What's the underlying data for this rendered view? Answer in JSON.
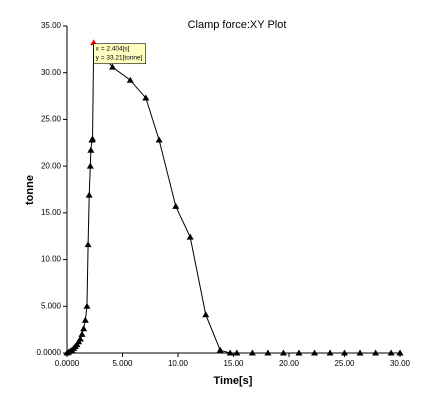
{
  "chart_data": {
    "type": "line",
    "title": "Clamp force:XY Plot",
    "xlabel": "Time[s]",
    "ylabel": "tonne",
    "annotation": [
      "x = 2.404[s]",
      "y = 33.21[tonne]"
    ],
    "x": [
      0,
      0.15,
      0.3,
      0.45,
      0.6,
      0.75,
      0.9,
      1.05,
      1.2,
      1.35,
      1.5,
      1.65,
      1.8,
      1.9,
      2.0,
      2.1,
      2.15,
      2.25,
      2.3,
      2.404,
      4.1,
      5.7,
      7.1,
      8.3,
      9.8,
      11.1,
      12.5,
      13.8,
      14.7,
      15.3,
      16.7,
      18.1,
      19.5,
      20.9,
      22.3,
      23.7,
      25.0,
      26.4,
      27.8,
      29.2,
      30.0
    ],
    "series": [
      {
        "color": "#000000",
        "highlight_color": "#ff0000",
        "values": [
          0,
          0.1,
          0.2,
          0.3,
          0.5,
          0.7,
          0.9,
          1.2,
          1.5,
          2.0,
          2.6,
          3.5,
          5.0,
          11.6,
          16.9,
          20.0,
          21.7,
          22.8,
          22.9,
          33.21,
          30.6,
          29.2,
          27.3,
          22.8,
          15.7,
          12.4,
          4.1,
          0.3,
          0,
          0,
          0,
          0,
          0,
          0,
          0,
          0,
          0,
          0,
          0,
          0,
          0
        ]
      }
    ],
    "xlim": [
      0,
      30
    ],
    "xticks": [
      {
        "value": 0,
        "label": "0.0000"
      },
      {
        "value": 5,
        "label": "5.000"
      },
      {
        "value": 10,
        "label": "10.00"
      },
      {
        "value": 15,
        "label": "15.00"
      },
      {
        "value": 20,
        "label": "20.00"
      },
      {
        "value": 25,
        "label": "25.00"
      },
      {
        "value": 30,
        "label": "30.00"
      }
    ],
    "ylim": [
      0,
      35
    ],
    "yticks": [
      {
        "value": 0,
        "label": "0.0000"
      },
      {
        "value": 5,
        "label": "5.000"
      },
      {
        "value": 10,
        "label": "10.00"
      },
      {
        "value": 15,
        "label": "15.00"
      },
      {
        "value": 20,
        "label": "20.00"
      },
      {
        "value": 25,
        "label": "25.00"
      },
      {
        "value": 30,
        "label": "30.00"
      },
      {
        "value": 35,
        "label": "35.00"
      }
    ],
    "grid": false
  }
}
